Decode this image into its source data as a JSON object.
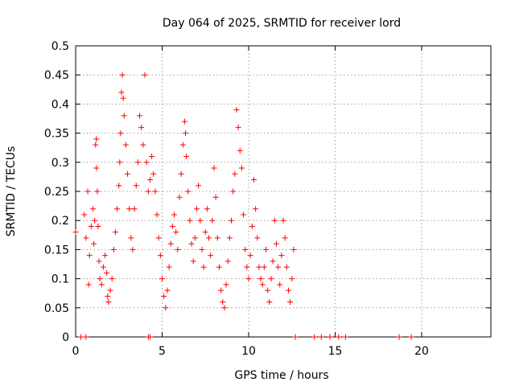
{
  "chart_data": {
    "type": "scatter",
    "title": "Day 064 of 2025, SRMTID for receiver lord",
    "xlabel": "GPS time / hours",
    "ylabel": "SRMTID / TECUs",
    "xlim": [
      0,
      24
    ],
    "ylim": [
      0,
      0.5
    ],
    "x_ticks": [
      "0",
      "5",
      "10",
      "15",
      "20"
    ],
    "y_ticks": [
      "0",
      "0.05",
      "0.1",
      "0.15",
      "0.2",
      "0.25",
      "0.3",
      "0.35",
      "0.4",
      "0.45",
      "0.5"
    ],
    "x_tick_values": [
      0,
      5,
      10,
      15,
      20
    ],
    "y_tick_values": [
      0,
      0.05,
      0.1,
      0.15,
      0.2,
      0.25,
      0.3,
      0.35,
      0.4,
      0.45,
      0.5
    ],
    "grid": true,
    "marker": "+",
    "color": "#ff0000",
    "series": [
      {
        "points": [
          [
            0.0,
            0.18
          ],
          [
            0.5,
            0.21
          ],
          [
            0.6,
            0.17
          ],
          [
            0.7,
            0.25
          ],
          [
            0.75,
            0.09
          ],
          [
            0.8,
            0.14
          ],
          [
            0.9,
            0.19
          ],
          [
            1.0,
            0.22
          ],
          [
            1.05,
            0.16
          ],
          [
            1.1,
            0.2
          ],
          [
            1.15,
            0.33
          ],
          [
            1.2,
            0.34
          ],
          [
            1.2,
            0.29
          ],
          [
            1.25,
            0.25
          ],
          [
            1.3,
            0.19
          ],
          [
            1.35,
            0.13
          ],
          [
            1.4,
            0.1
          ],
          [
            1.5,
            0.09
          ],
          [
            1.6,
            0.12
          ],
          [
            1.7,
            0.14
          ],
          [
            1.8,
            0.11
          ],
          [
            1.85,
            0.07
          ],
          [
            1.9,
            0.06
          ],
          [
            2.0,
            0.08
          ],
          [
            2.1,
            0.1
          ],
          [
            2.2,
            0.15
          ],
          [
            2.3,
            0.18
          ],
          [
            2.4,
            0.22
          ],
          [
            2.5,
            0.26
          ],
          [
            2.55,
            0.3
          ],
          [
            2.6,
            0.35
          ],
          [
            2.65,
            0.42
          ],
          [
            2.7,
            0.45
          ],
          [
            2.75,
            0.41
          ],
          [
            2.8,
            0.38
          ],
          [
            2.9,
            0.33
          ],
          [
            3.0,
            0.28
          ],
          [
            3.1,
            0.22
          ],
          [
            3.2,
            0.17
          ],
          [
            3.3,
            0.15
          ],
          [
            3.4,
            0.22
          ],
          [
            3.5,
            0.26
          ],
          [
            3.6,
            0.3
          ],
          [
            3.7,
            0.38
          ],
          [
            3.8,
            0.36
          ],
          [
            3.9,
            0.33
          ],
          [
            4.0,
            0.45
          ],
          [
            4.1,
            0.3
          ],
          [
            4.2,
            0.25
          ],
          [
            4.3,
            0.27
          ],
          [
            4.4,
            0.31
          ],
          [
            4.5,
            0.28
          ],
          [
            4.6,
            0.25
          ],
          [
            4.7,
            0.21
          ],
          [
            4.8,
            0.17
          ],
          [
            4.9,
            0.14
          ],
          [
            5.0,
            0.1
          ],
          [
            5.1,
            0.07
          ],
          [
            5.2,
            0.05
          ],
          [
            5.3,
            0.08
          ],
          [
            5.4,
            0.12
          ],
          [
            5.5,
            0.16
          ],
          [
            5.6,
            0.19
          ],
          [
            5.7,
            0.21
          ],
          [
            5.8,
            0.18
          ],
          [
            5.9,
            0.15
          ],
          [
            6.0,
            0.24
          ],
          [
            6.1,
            0.28
          ],
          [
            6.2,
            0.33
          ],
          [
            6.3,
            0.37
          ],
          [
            6.35,
            0.35
          ],
          [
            6.4,
            0.31
          ],
          [
            6.5,
            0.25
          ],
          [
            6.6,
            0.2
          ],
          [
            6.7,
            0.16
          ],
          [
            6.8,
            0.13
          ],
          [
            6.9,
            0.17
          ],
          [
            7.0,
            0.22
          ],
          [
            7.1,
            0.26
          ],
          [
            7.2,
            0.2
          ],
          [
            7.3,
            0.15
          ],
          [
            7.4,
            0.12
          ],
          [
            7.5,
            0.18
          ],
          [
            7.6,
            0.22
          ],
          [
            7.7,
            0.17
          ],
          [
            7.8,
            0.14
          ],
          [
            7.9,
            0.2
          ],
          [
            8.0,
            0.29
          ],
          [
            8.1,
            0.24
          ],
          [
            8.2,
            0.17
          ],
          [
            8.3,
            0.12
          ],
          [
            8.4,
            0.08
          ],
          [
            8.5,
            0.06
          ],
          [
            8.6,
            0.05
          ],
          [
            8.7,
            0.09
          ],
          [
            8.8,
            0.13
          ],
          [
            8.9,
            0.17
          ],
          [
            9.0,
            0.2
          ],
          [
            9.1,
            0.25
          ],
          [
            9.2,
            0.28
          ],
          [
            9.3,
            0.39
          ],
          [
            9.4,
            0.36
          ],
          [
            9.5,
            0.32
          ],
          [
            9.6,
            0.29
          ],
          [
            9.7,
            0.21
          ],
          [
            9.8,
            0.15
          ],
          [
            9.9,
            0.12
          ],
          [
            10.0,
            0.1
          ],
          [
            10.1,
            0.14
          ],
          [
            10.2,
            0.19
          ],
          [
            10.3,
            0.27
          ],
          [
            10.4,
            0.22
          ],
          [
            10.5,
            0.17
          ],
          [
            10.6,
            0.12
          ],
          [
            10.7,
            0.1
          ],
          [
            10.8,
            0.09
          ],
          [
            10.9,
            0.12
          ],
          [
            11.0,
            0.15
          ],
          [
            11.1,
            0.08
          ],
          [
            11.2,
            0.06
          ],
          [
            11.3,
            0.1
          ],
          [
            11.4,
            0.13
          ],
          [
            11.5,
            0.2
          ],
          [
            11.6,
            0.16
          ],
          [
            11.7,
            0.12
          ],
          [
            11.8,
            0.09
          ],
          [
            11.9,
            0.14
          ],
          [
            12.0,
            0.2
          ],
          [
            12.1,
            0.17
          ],
          [
            12.2,
            0.12
          ],
          [
            12.3,
            0.08
          ],
          [
            12.4,
            0.06
          ],
          [
            12.5,
            0.1
          ],
          [
            12.6,
            0.15
          ],
          [
            0.3,
            0.0
          ],
          [
            0.6,
            0.0
          ],
          [
            4.2,
            0.0
          ],
          [
            4.3,
            0.0
          ],
          [
            12.7,
            0.0
          ],
          [
            13.8,
            0.0
          ],
          [
            14.2,
            0.0
          ],
          [
            14.7,
            0.0
          ],
          [
            15.2,
            0.0
          ],
          [
            15.6,
            0.0
          ],
          [
            18.7,
            0.0
          ],
          [
            19.4,
            0.0
          ]
        ]
      }
    ]
  }
}
